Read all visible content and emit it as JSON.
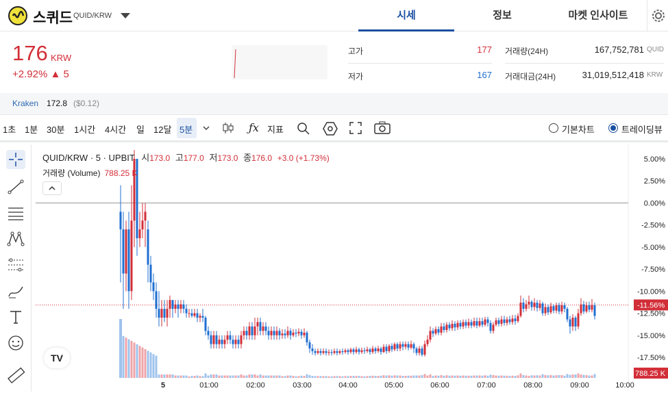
{
  "header": {
    "coin_name": "스퀴드",
    "pair": "QUID/KRW",
    "tabs": [
      {
        "label": "시세",
        "active": true
      },
      {
        "label": "정보",
        "active": false
      },
      {
        "label": "마켓 인사이트",
        "active": false
      }
    ]
  },
  "ticker": {
    "price": "176",
    "unit": "KRW",
    "change": "+2.92% ▲ 5",
    "high_label": "고가",
    "high_value": "177",
    "low_label": "저가",
    "low_value": "167",
    "volume_label": "거래량(24H)",
    "volume_value": "167,752,781",
    "volume_unit": "QUID",
    "amount_label": "거래대금(24H)",
    "amount_value": "31,019,512,418",
    "amount_unit": "KRW"
  },
  "exchange": {
    "name": "Kraken",
    "price": "172.8",
    "usd": "($0.12)"
  },
  "toolbar": {
    "intervals": [
      "1초",
      "1분",
      "30분",
      "1시간",
      "4시간",
      "일",
      "12달",
      "5분"
    ],
    "selected_interval": "5분",
    "indicator_label": "지표",
    "basic_chart_label": "기본차트",
    "tradingview_label": "트레이딩뷰",
    "selected_view": "트레이딩뷰"
  },
  "legend": {
    "title": "QUID/KRW · 5 · UPBIT",
    "open_label": "시",
    "open": "173.0",
    "high_label": "고",
    "high": "177.0",
    "low_label": "저",
    "low": "173.0",
    "close_label": "종",
    "close": "176.0",
    "change": "+3.0 (+1.73%)",
    "volume_label": "거래량 (Volume)",
    "volume_value": "788.25 K"
  },
  "chart_data": {
    "type": "candlestick",
    "y_axis_labels": [
      "5.00%",
      "2.50%",
      "0.00%",
      "-2.50%",
      "-5.00%",
      "-7.50%",
      "-10.00%",
      "-12.50%",
      "-15.00%",
      "-17.50%"
    ],
    "current_badge": "-11.56%",
    "volume_badge": "788.25 K",
    "x_axis_labels": [
      "5",
      "01:00",
      "02:00",
      "03:00",
      "04:00",
      "05:00",
      "06:00",
      "07:00",
      "08:00",
      "09:00",
      "10:00"
    ],
    "colors": {
      "up": "#d22e38",
      "down": "#1f6fd1",
      "vol_up": "#efa4a9",
      "vol_down": "#9fc3ec"
    }
  }
}
